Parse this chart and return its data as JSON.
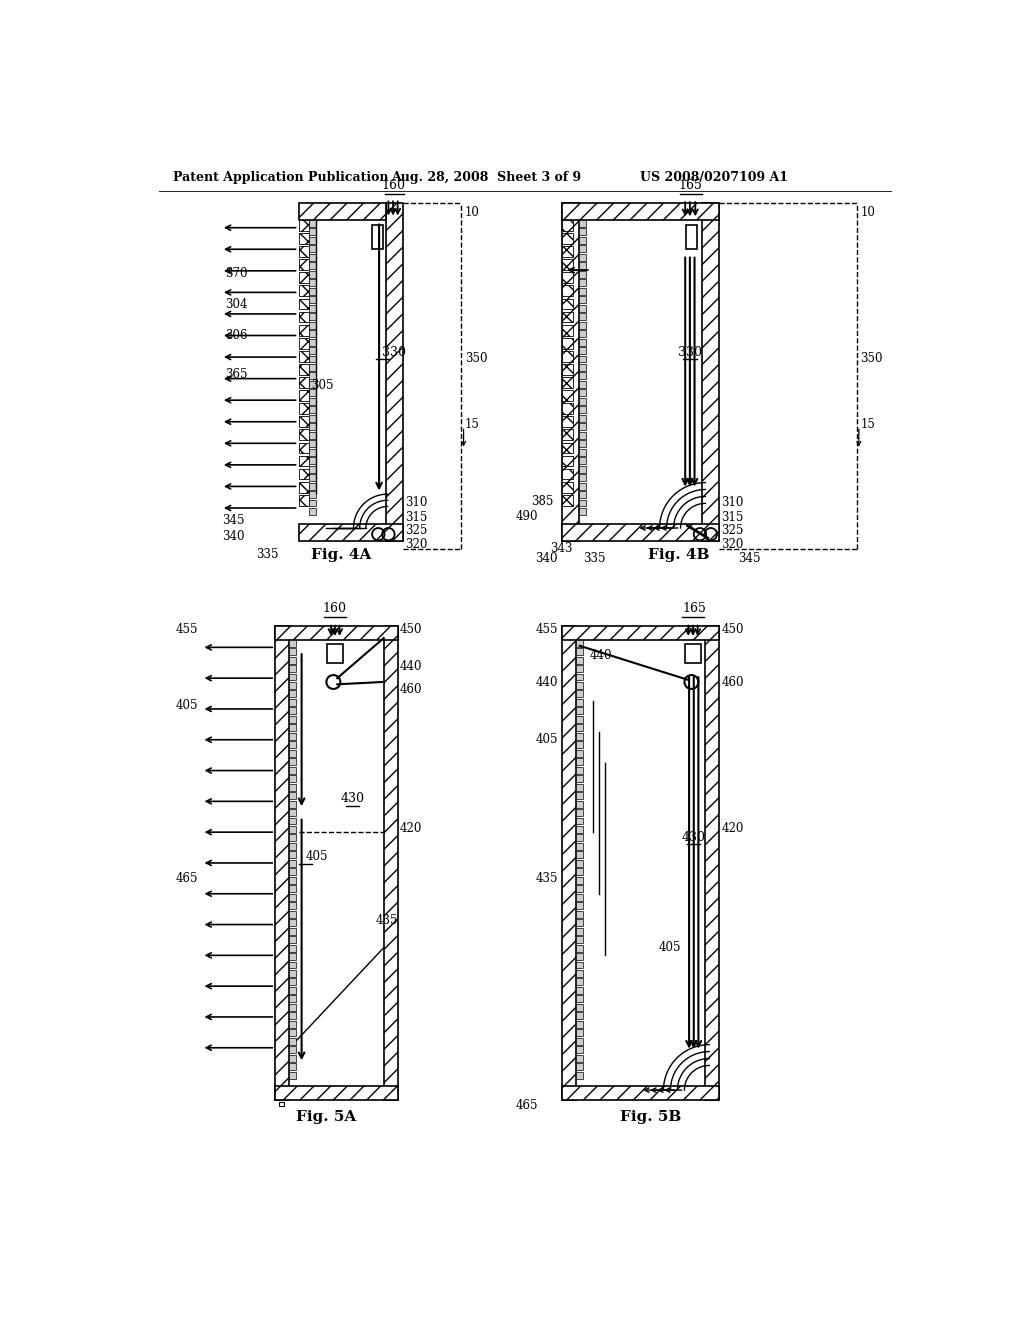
{
  "header_left": "Patent Application Publication",
  "header_mid": "Aug. 28, 2008  Sheet 3 of 9",
  "header_right": "US 2008/0207109 A1",
  "fig4a_label": "Fig. 4A",
  "fig4b_label": "Fig. 4B",
  "fig5a_label": "Fig. 5A",
  "fig5b_label": "Fig. 5B",
  "bg": "#ffffff"
}
